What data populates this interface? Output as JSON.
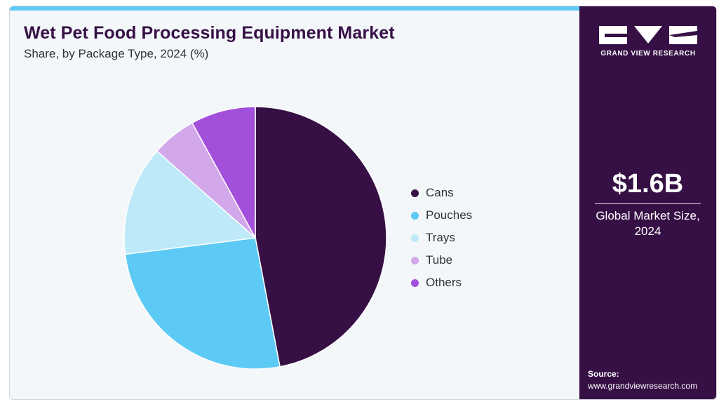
{
  "header": {
    "title": "Wet Pet Food Processing Equipment Market",
    "subtitle": "Share, by Package Type, 2024 (%)"
  },
  "sidebar": {
    "brand_text": "GRAND VIEW RESEARCH",
    "metric_value": "$1.6B",
    "metric_label": "Global Market Size, 2024",
    "source_label": "Source:",
    "source_url": "www.grandviewresearch.com"
  },
  "colors": {
    "accent_bar": "#5dcaf5",
    "sidebar_bg": "#361045"
  },
  "chart_data": {
    "type": "pie",
    "title": "Wet Pet Food Processing Equipment Market",
    "subtitle": "Share, by Package Type, 2024 (%)",
    "legend_position": "right",
    "categories": [
      "Cans",
      "Pouches",
      "Trays",
      "Tube",
      "Others"
    ],
    "values": [
      47,
      26,
      13.5,
      5.5,
      8
    ],
    "colors": [
      "#361045",
      "#5dcaf5",
      "#bde9f8",
      "#d3a8ea",
      "#a24fdb"
    ]
  }
}
